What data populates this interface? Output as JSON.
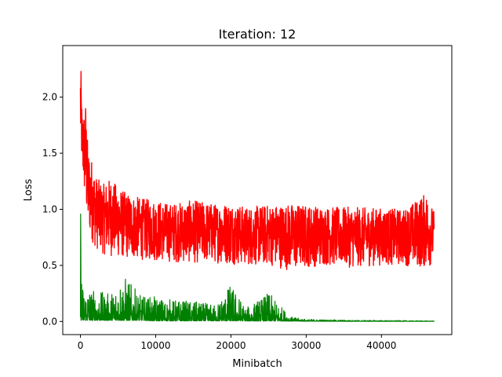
{
  "chart_data": {
    "type": "line",
    "title": "Iteration: 12",
    "xlabel": "Minibatch",
    "ylabel": "Loss",
    "xlim": [
      -2350,
      49350
    ],
    "ylim": [
      -0.117,
      2.46
    ],
    "x_ticks": [
      0,
      10000,
      20000,
      30000,
      40000
    ],
    "x_tick_labels": [
      "0",
      "10000",
      "20000",
      "30000",
      "40000"
    ],
    "y_ticks": [
      0.0,
      0.5,
      1.0,
      1.5,
      2.0
    ],
    "y_tick_labels": [
      "0.0",
      "0.5",
      "1.0",
      "1.5",
      "2.0"
    ],
    "grid": false,
    "series": [
      {
        "color": "#ff0000",
        "x": [
          0,
          100,
          200,
          400,
          700,
          1000,
          1500,
          2000,
          3000,
          4000,
          5000,
          6000,
          8000,
          10000,
          12000,
          15000,
          18000,
          20000,
          22000,
          25000,
          28000,
          30000,
          33000,
          36000,
          40000,
          43000,
          46000,
          47000
        ],
        "upper": [
          2.35,
          2.2,
          1.9,
          1.85,
          1.98,
          1.55,
          1.45,
          1.3,
          1.22,
          1.28,
          1.2,
          1.15,
          1.1,
          1.08,
          1.05,
          1.08,
          1.05,
          1.06,
          1.02,
          1.04,
          1.05,
          1.04,
          1.02,
          1.02,
          1.01,
          1.0,
          1.15,
          0.98
        ],
        "lower": [
          1.5,
          1.45,
          1.35,
          1.2,
          0.95,
          0.8,
          0.72,
          0.65,
          0.6,
          0.58,
          0.57,
          0.56,
          0.55,
          0.54,
          0.53,
          0.52,
          0.52,
          0.51,
          0.5,
          0.5,
          0.45,
          0.48,
          0.5,
          0.48,
          0.5,
          0.5,
          0.47,
          0.52
        ]
      },
      {
        "color": "#008000",
        "x": [
          0,
          100,
          200,
          400,
          700,
          1000,
          1500,
          2000,
          3000,
          4000,
          5000,
          6000,
          8000,
          10000,
          12000,
          15000,
          18000,
          20000,
          22000,
          25000,
          28000,
          30000,
          33000,
          36000,
          40000,
          43000,
          46000,
          47000
        ],
        "upper": [
          1.4,
          0.8,
          0.35,
          0.33,
          0.32,
          0.34,
          0.3,
          0.28,
          0.26,
          0.25,
          0.38,
          0.4,
          0.23,
          0.22,
          0.2,
          0.18,
          0.15,
          0.34,
          0.12,
          0.26,
          0.04,
          0.02,
          0.015,
          0.012,
          0.01,
          0.008,
          0.006,
          0.005
        ],
        "lower": [
          0.02,
          0.01,
          0.01,
          0.01,
          0.01,
          0.01,
          0.01,
          0.01,
          0.01,
          0.01,
          0.01,
          0.01,
          0.01,
          0.005,
          0.005,
          0.005,
          0.005,
          0.005,
          0.004,
          0.004,
          0.003,
          0.002,
          0.002,
          0.001,
          0.001,
          0.001,
          0.001,
          0.001
        ]
      }
    ]
  }
}
